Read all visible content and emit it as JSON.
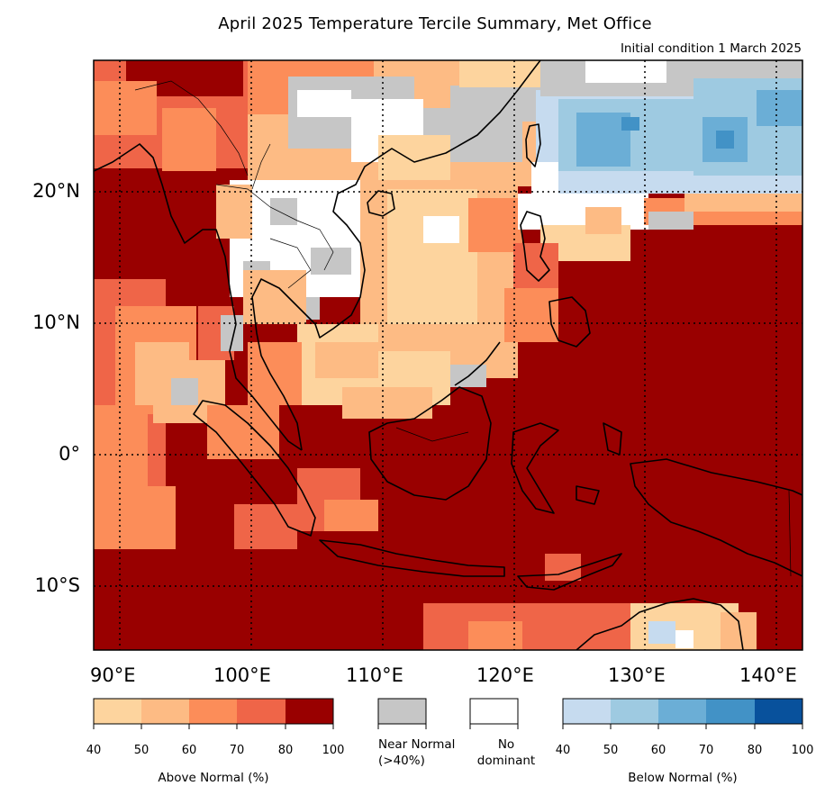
{
  "title": "April 2025 Temperature Tercile Summary, Met Office",
  "subtitle": "Initial condition 1 March 2025",
  "map": {
    "lon_range": [
      88,
      142
    ],
    "lat_range": [
      -15,
      30
    ],
    "lat_labels": [
      "20°N",
      "10°N",
      "0°",
      "10°S"
    ],
    "lon_labels": [
      "90°E",
      "100°E",
      "110°E",
      "120°E",
      "130°E",
      "140°E"
    ],
    "gridlines": "dotted",
    "coastlines": true
  },
  "legend": {
    "above": {
      "title": "Above Normal (%)",
      "ticks": [
        "40",
        "50",
        "60",
        "70",
        "80",
        "100"
      ],
      "colors": [
        "#fdd49e",
        "#fdbb84",
        "#fc8d59",
        "#ef6548",
        "#990000"
      ]
    },
    "near": {
      "label_line1": "Near Normal",
      "label_line2": "(>40%)",
      "color": "#c6c6c6"
    },
    "none": {
      "label_line1": "No",
      "label_line2": "dominant",
      "color": "#ffffff"
    },
    "below": {
      "title": "Below Normal (%)",
      "ticks": [
        "40",
        "50",
        "60",
        "70",
        "80",
        "100"
      ],
      "colors": [
        "#c6dbef",
        "#9ecae1",
        "#6baed6",
        "#4292c6",
        "#08519c"
      ]
    }
  },
  "colors": {
    "above_40": "#fdd49e",
    "above_50": "#fdbb84",
    "above_60": "#fc8d59",
    "above_70": "#ef6548",
    "above_80": "#990000",
    "near_normal": "#c6c6c6",
    "no_dominant": "#ffffff",
    "below_40": "#c6dbef",
    "below_50": "#9ecae1",
    "below_60": "#6baed6",
    "below_70": "#4292c6"
  }
}
